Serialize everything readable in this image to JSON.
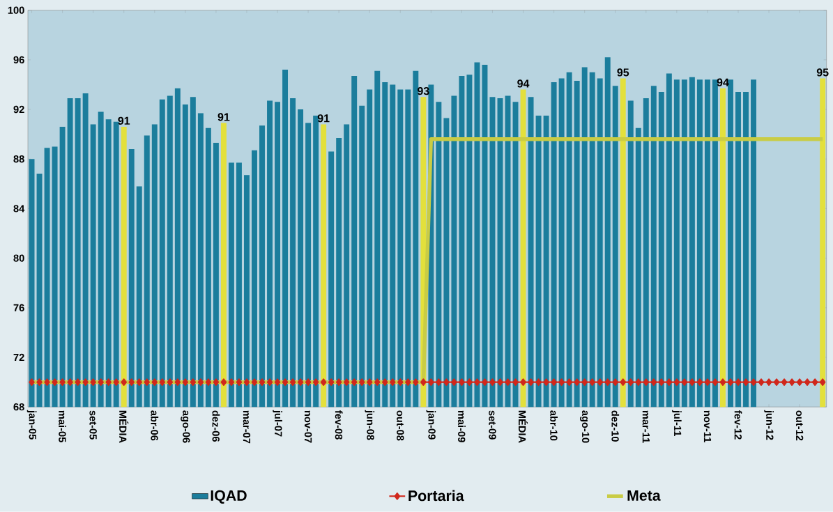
{
  "chart_data": {
    "type": "bar",
    "categories": [
      "jan-05",
      null,
      null,
      null,
      "mai-05",
      null,
      null,
      null,
      "set-05",
      null,
      null,
      null,
      "MÉDIA",
      null,
      null,
      null,
      "abr-06",
      null,
      null,
      null,
      "ago-06",
      null,
      null,
      null,
      "dez-06",
      null,
      null,
      null,
      "mar-07",
      null,
      null,
      null,
      "jul-07",
      null,
      null,
      null,
      "nov-07",
      null,
      null,
      null,
      "fev-08",
      null,
      null,
      null,
      "jun-08",
      null,
      null,
      null,
      "out-08",
      null,
      null,
      null,
      "jan-09",
      null,
      null,
      null,
      "mai-09",
      null,
      null,
      null,
      "set-09",
      null,
      null,
      null,
      "MÉDIA",
      null,
      null,
      null,
      "abr-10",
      null,
      null,
      null,
      "ago-10",
      null,
      null,
      null,
      "dez-10",
      null,
      null,
      null,
      "mar-11",
      null,
      null,
      null,
      "jul-11",
      null,
      null,
      null,
      "nov-11",
      null,
      null,
      null,
      "fev-12",
      null,
      null,
      null,
      "jun-12",
      null,
      null,
      null,
      "out-12",
      null,
      null,
      null
    ],
    "series": [
      {
        "name": "IQAD",
        "color": "#1b7d9c",
        "values": [
          88.0,
          86.8,
          88.9,
          89.0,
          90.6,
          92.9,
          92.9,
          93.3,
          90.8,
          91.8,
          91.2,
          91.0,
          90.6,
          88.8,
          85.8,
          89.9,
          90.8,
          92.8,
          93.1,
          93.7,
          92.4,
          93.0,
          91.7,
          90.5,
          89.3,
          90.9,
          87.7,
          87.7,
          86.7,
          88.7,
          90.7,
          92.7,
          92.6,
          95.2,
          92.9,
          92.0,
          90.9,
          91.5,
          90.8,
          88.6,
          89.7,
          90.8,
          94.7,
          92.3,
          93.6,
          95.1,
          94.2,
          94.0,
          93.6,
          93.6,
          95.1,
          93.0,
          94.0,
          92.6,
          91.3,
          93.1,
          94.7,
          94.8,
          95.8,
          95.6,
          93.0,
          92.9,
          93.1,
          92.6,
          93.6,
          93.0,
          91.5,
          91.5,
          94.2,
          94.5,
          95.0,
          94.3,
          95.4,
          95.0,
          94.5,
          96.2,
          93.9,
          94.5,
          92.7,
          90.5,
          92.9,
          93.9,
          93.4,
          94.9,
          94.4,
          94.4,
          94.6,
          94.4,
          94.4,
          94.4,
          93.7,
          94.4,
          93.4,
          93.4,
          94.4,
          null,
          null,
          null,
          null,
          null,
          null,
          null,
          null,
          94.5
        ],
        "colors": [
          "#1b7d9c",
          "#1b7d9c",
          "#1b7d9c",
          "#1b7d9c",
          "#1b7d9c",
          "#1b7d9c",
          "#1b7d9c",
          "#1b7d9c",
          "#1b7d9c",
          "#1b7d9c",
          "#1b7d9c",
          "#1b7d9c",
          "#e3e03c",
          "#1b7d9c",
          "#1b7d9c",
          "#1b7d9c",
          "#1b7d9c",
          "#1b7d9c",
          "#1b7d9c",
          "#1b7d9c",
          "#1b7d9c",
          "#1b7d9c",
          "#1b7d9c",
          "#1b7d9c",
          "#1b7d9c",
          "#e3e03c",
          "#1b7d9c",
          "#1b7d9c",
          "#1b7d9c",
          "#1b7d9c",
          "#1b7d9c",
          "#1b7d9c",
          "#1b7d9c",
          "#1b7d9c",
          "#1b7d9c",
          "#1b7d9c",
          "#1b7d9c",
          "#1b7d9c",
          "#e3e03c",
          "#1b7d9c",
          "#1b7d9c",
          "#1b7d9c",
          "#1b7d9c",
          "#1b7d9c",
          "#1b7d9c",
          "#1b7d9c",
          "#1b7d9c",
          "#1b7d9c",
          "#1b7d9c",
          "#1b7d9c",
          "#1b7d9c",
          "#e3e03c",
          "#1b7d9c",
          "#1b7d9c",
          "#1b7d9c",
          "#1b7d9c",
          "#1b7d9c",
          "#1b7d9c",
          "#1b7d9c",
          "#1b7d9c",
          "#1b7d9c",
          "#1b7d9c",
          "#1b7d9c",
          "#1b7d9c",
          "#e3e03c",
          "#1b7d9c",
          "#1b7d9c",
          "#1b7d9c",
          "#1b7d9c",
          "#1b7d9c",
          "#1b7d9c",
          "#1b7d9c",
          "#1b7d9c",
          "#1b7d9c",
          "#1b7d9c",
          "#1b7d9c",
          "#1b7d9c",
          "#e3e03c",
          "#1b7d9c",
          "#1b7d9c",
          "#1b7d9c",
          "#1b7d9c",
          "#1b7d9c",
          "#1b7d9c",
          "#1b7d9c",
          "#1b7d9c",
          "#1b7d9c",
          "#1b7d9c",
          "#1b7d9c",
          "#1b7d9c",
          "#e3e03c",
          "#1b7d9c",
          "#1b7d9c",
          "#1b7d9c",
          "#1b7d9c",
          "#1b7d9c",
          "#1b7d9c",
          "#1b7d9c",
          "#1b7d9c",
          "#1b7d9c",
          "#1b7d9c",
          "#1b7d9c",
          "#1b7d9c",
          "#e3e03c"
        ],
        "value_labels": [
          null,
          null,
          null,
          null,
          null,
          null,
          null,
          null,
          null,
          null,
          null,
          null,
          "91",
          null,
          null,
          null,
          null,
          null,
          null,
          null,
          null,
          null,
          null,
          null,
          null,
          "91",
          null,
          null,
          null,
          null,
          null,
          null,
          null,
          null,
          null,
          null,
          null,
          null,
          "91",
          null,
          null,
          null,
          null,
          null,
          null,
          null,
          null,
          null,
          null,
          null,
          null,
          "93",
          null,
          null,
          null,
          null,
          null,
          null,
          null,
          null,
          null,
          null,
          null,
          null,
          "94",
          null,
          null,
          null,
          null,
          null,
          null,
          null,
          null,
          null,
          null,
          null,
          null,
          "95",
          null,
          null,
          null,
          null,
          null,
          null,
          null,
          null,
          null,
          null,
          null,
          null,
          "94",
          null,
          null,
          null,
          null,
          null,
          null,
          null,
          null,
          null,
          null,
          null,
          null,
          "95"
        ]
      },
      {
        "name": "Portaria",
        "type": "line",
        "color": "#d0281c",
        "marker": "diamond",
        "values": [
          70,
          70,
          70,
          70,
          70,
          70,
          70,
          70,
          70,
          70,
          70,
          70,
          70,
          70,
          70,
          70,
          70,
          70,
          70,
          70,
          70,
          70,
          70,
          70,
          70,
          70,
          70,
          70,
          70,
          70,
          70,
          70,
          70,
          70,
          70,
          70,
          70,
          70,
          70,
          70,
          70,
          70,
          70,
          70,
          70,
          70,
          70,
          70,
          70,
          70,
          70,
          70,
          70,
          70,
          70,
          70,
          70,
          70,
          70,
          70,
          70,
          70,
          70,
          70,
          70,
          70,
          70,
          70,
          70,
          70,
          70,
          70,
          70,
          70,
          70,
          70,
          70,
          70,
          70,
          70,
          70,
          70,
          70,
          70,
          70,
          70,
          70,
          70,
          70,
          70,
          70,
          70,
          70,
          70,
          70,
          70,
          70,
          70,
          70,
          70,
          70,
          70,
          70,
          70
        ]
      },
      {
        "name": "Meta",
        "type": "line",
        "color": "#c9cc45",
        "values": [
          70,
          70,
          70,
          70,
          70,
          70,
          70,
          70,
          70,
          70,
          70,
          70,
          70,
          70,
          70,
          70,
          70,
          70,
          70,
          70,
          70,
          70,
          70,
          70,
          70,
          70,
          70,
          70,
          70,
          70,
          70,
          70,
          70,
          70,
          70,
          70,
          70,
          70,
          70,
          70,
          70,
          70,
          70,
          70,
          70,
          70,
          70,
          70,
          70,
          70,
          70,
          70,
          89.6,
          89.6,
          89.6,
          89.6,
          89.6,
          89.6,
          89.6,
          89.6,
          89.6,
          89.6,
          89.6,
          89.6,
          89.6,
          89.6,
          89.6,
          89.6,
          89.6,
          89.6,
          89.6,
          89.6,
          89.6,
          89.6,
          89.6,
          89.6,
          89.6,
          89.6,
          89.6,
          89.6,
          89.6,
          89.6,
          89.6,
          89.6,
          89.6,
          89.6,
          89.6,
          89.6,
          89.6,
          89.6,
          89.6,
          89.6,
          89.6,
          89.6,
          89.6,
          89.6,
          89.6,
          89.6,
          89.6,
          89.6,
          89.6,
          89.6,
          89.6,
          89.6
        ]
      }
    ],
    "ylim": [
      68,
      100
    ],
    "yticks": [
      68,
      72,
      76,
      80,
      84,
      88,
      92,
      96,
      100
    ],
    "legend": "bottom"
  }
}
